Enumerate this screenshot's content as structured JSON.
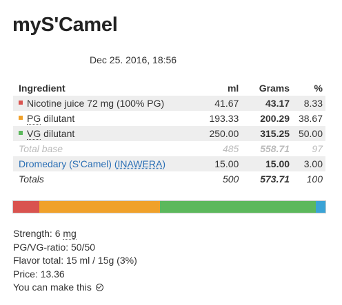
{
  "title": "myS'Camel",
  "datetime": "Dec 25. 2016, 18:56",
  "table": {
    "headers": {
      "ingredient": "Ingredient",
      "ml": "ml",
      "grams": "Grams",
      "pct": "%"
    },
    "rows": [
      {
        "prefix": "",
        "name": "Nicotine juice 72 mg (100% PG)",
        "ml": "41.67",
        "grams": "43.17",
        "pct": "8.33",
        "color": "#d9534f"
      },
      {
        "prefix": "PG",
        "name": " dilutant",
        "ml": "193.33",
        "grams": "200.29",
        "pct": "38.67",
        "color": "#f0a12a"
      },
      {
        "prefix": "VG",
        "name": " dilutant",
        "ml": "250.00",
        "grams": "315.25",
        "pct": "50.00",
        "color": "#5cb85c"
      }
    ],
    "total_base": {
      "label": "Total base",
      "ml": "485",
      "grams": "558.71",
      "pct": "97"
    },
    "flavor": {
      "name": "Dromedary (S'Camel)",
      "brand_open": "(",
      "brand": "INAWERA",
      "brand_close": ")",
      "ml": "15.00",
      "grams": "15.00",
      "pct": "3.00",
      "color": "#3aa3d6"
    },
    "totals": {
      "label": "Totals",
      "ml": "500",
      "grams": "573.71",
      "pct": "100"
    }
  },
  "bar": [
    {
      "name": "nicotine",
      "percent": 8.33,
      "color": "#d9534f"
    },
    {
      "name": "pg",
      "percent": 38.67,
      "color": "#f0a12a"
    },
    {
      "name": "vg",
      "percent": 50.0,
      "color": "#5cb85c"
    },
    {
      "name": "flavor",
      "percent": 3.0,
      "color": "#3aa3d6"
    }
  ],
  "info": {
    "strength_label": "Strength: 6 ",
    "strength_unit": "mg",
    "pgvg": "PG/VG-ratio: 50/50",
    "flavor_total": "Flavor total: 15 ml / 15g (3%)",
    "price": "Price: 13.36",
    "can_make": "You can make this"
  }
}
